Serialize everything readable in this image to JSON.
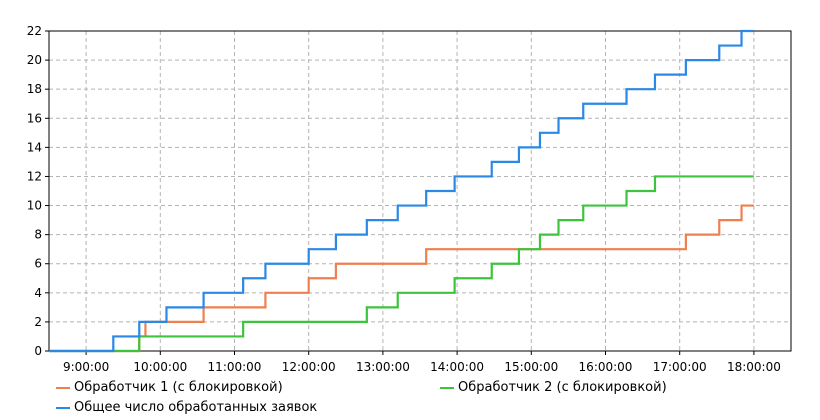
{
  "chart_data": {
    "type": "line",
    "step": true,
    "xlabel": "",
    "ylabel": "",
    "x_ticks": [
      "9:00:00",
      "10:00:00",
      "11:00:00",
      "12:00:00",
      "13:00:00",
      "14:00:00",
      "15:00:00",
      "16:00:00",
      "17:00:00",
      "18:00:00"
    ],
    "y_ticks": [
      "0",
      "2",
      "4",
      "6",
      "8",
      "10",
      "12",
      "14",
      "16",
      "18",
      "20",
      "22"
    ],
    "xlim": [
      "8:30:00",
      "18:30:00"
    ],
    "ylim": [
      0,
      22
    ],
    "grid": true,
    "legend_position": "bottom",
    "series": [
      {
        "name": "Обработчик 1 (с блокировкой)",
        "color": "#f07f4f",
        "points": [
          [
            "8:30:00",
            0
          ],
          [
            "9:43:00",
            1
          ],
          [
            "9:48:00",
            2
          ],
          [
            "10:35:00",
            3
          ],
          [
            "11:25:00",
            4
          ],
          [
            "12:00:00",
            5
          ],
          [
            "12:22:00",
            6
          ],
          [
            "13:35:00",
            7
          ],
          [
            "17:05:00",
            8
          ],
          [
            "17:32:00",
            9
          ],
          [
            "17:50:00",
            10
          ],
          [
            "18:00:00",
            10
          ]
        ]
      },
      {
        "name": "Обработчик 2 (с блокировкой)",
        "color": "#3cc43c",
        "points": [
          [
            "8:30:00",
            0
          ],
          [
            "9:43:00",
            1
          ],
          [
            "11:07:00",
            2
          ],
          [
            "12:47:00",
            3
          ],
          [
            "13:12:00",
            4
          ],
          [
            "13:58:00",
            5
          ],
          [
            "14:28:00",
            6
          ],
          [
            "14:50:00",
            7
          ],
          [
            "15:07:00",
            8
          ],
          [
            "15:22:00",
            9
          ],
          [
            "15:42:00",
            10
          ],
          [
            "16:17:00",
            11
          ],
          [
            "16:40:00",
            12
          ],
          [
            "18:00:00",
            12
          ]
        ]
      },
      {
        "name": "Общее число обработанных заявок",
        "color": "#2a88e6",
        "points": [
          [
            "8:30:00",
            0
          ],
          [
            "9:22:00",
            1
          ],
          [
            "9:43:00",
            2
          ],
          [
            "10:05:00",
            3
          ],
          [
            "10:35:00",
            4
          ],
          [
            "11:07:00",
            5
          ],
          [
            "11:25:00",
            6
          ],
          [
            "12:00:00",
            7
          ],
          [
            "12:22:00",
            8
          ],
          [
            "12:47:00",
            9
          ],
          [
            "13:12:00",
            10
          ],
          [
            "13:35:00",
            11
          ],
          [
            "13:58:00",
            12
          ],
          [
            "14:28:00",
            13
          ],
          [
            "14:50:00",
            14
          ],
          [
            "15:07:00",
            15
          ],
          [
            "15:22:00",
            16
          ],
          [
            "15:42:00",
            17
          ],
          [
            "16:17:00",
            18
          ],
          [
            "16:40:00",
            19
          ],
          [
            "17:05:00",
            20
          ],
          [
            "17:32:00",
            21
          ],
          [
            "17:50:00",
            22
          ],
          [
            "18:00:00",
            22
          ]
        ]
      }
    ]
  }
}
